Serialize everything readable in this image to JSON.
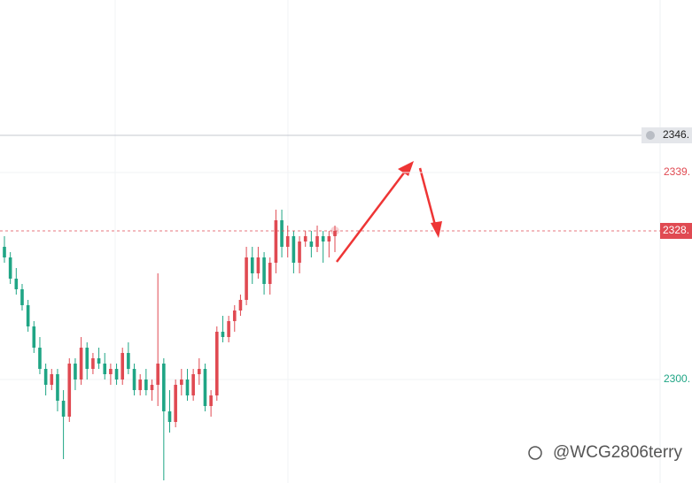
{
  "chart_data": {
    "type": "candlestick",
    "up_color": "#e04a52",
    "down_color": "#1fa585",
    "ylim": [
      2280.5,
      2371.5
    ],
    "yticks": [
      {
        "value": 2339,
        "label": "2339.",
        "color": "#e04a52"
      },
      {
        "value": 2300,
        "label": "2300.",
        "color": "#1fa585"
      }
    ],
    "grid": true,
    "alert_line": {
      "value": 2346,
      "label": "2346."
    },
    "last_price": {
      "value": 2328,
      "label": "2328."
    },
    "watermark": "@WCG2806terry",
    "candles": [
      {
        "open": 2325,
        "high": 2327,
        "low": 2322,
        "close": 2323
      },
      {
        "open": 2323,
        "high": 2324,
        "low": 2318,
        "close": 2319
      },
      {
        "open": 2319,
        "high": 2321,
        "low": 2316,
        "close": 2317
      },
      {
        "open": 2317,
        "high": 2318,
        "low": 2313,
        "close": 2314
      },
      {
        "open": 2314,
        "high": 2315,
        "low": 2309,
        "close": 2310
      },
      {
        "open": 2310,
        "high": 2311,
        "low": 2305,
        "close": 2306
      },
      {
        "open": 2306,
        "high": 2308,
        "low": 2301,
        "close": 2302
      },
      {
        "open": 2302,
        "high": 2303,
        "low": 2297,
        "close": 2299
      },
      {
        "open": 2299,
        "high": 2302,
        "low": 2298,
        "close": 2301
      },
      {
        "open": 2301,
        "high": 2302,
        "low": 2294,
        "close": 2296
      },
      {
        "open": 2296,
        "high": 2298,
        "low": 2285,
        "close": 2293
      },
      {
        "open": 2293,
        "high": 2304,
        "low": 2292,
        "close": 2303
      },
      {
        "open": 2303,
        "high": 2304,
        "low": 2298,
        "close": 2300
      },
      {
        "open": 2300,
        "high": 2308,
        "low": 2299,
        "close": 2306
      },
      {
        "open": 2306,
        "high": 2307,
        "low": 2300,
        "close": 2302
      },
      {
        "open": 2302,
        "high": 2305,
        "low": 2301,
        "close": 2304
      },
      {
        "open": 2304,
        "high": 2306,
        "low": 2302,
        "close": 2303
      },
      {
        "open": 2303,
        "high": 2305,
        "low": 2300,
        "close": 2301
      },
      {
        "open": 2301,
        "high": 2303,
        "low": 2299,
        "close": 2302
      },
      {
        "open": 2302,
        "high": 2303,
        "low": 2299,
        "close": 2300
      },
      {
        "open": 2300,
        "high": 2306,
        "low": 2299,
        "close": 2305
      },
      {
        "open": 2305,
        "high": 2307,
        "low": 2301,
        "close": 2302
      },
      {
        "open": 2302,
        "high": 2303,
        "low": 2297,
        "close": 2298
      },
      {
        "open": 2298,
        "high": 2301,
        "low": 2297,
        "close": 2300
      },
      {
        "open": 2300,
        "high": 2302,
        "low": 2297,
        "close": 2298
      },
      {
        "open": 2298,
        "high": 2300,
        "low": 2296,
        "close": 2299
      },
      {
        "open": 2299,
        "high": 2320,
        "low": 2295,
        "close": 2303
      },
      {
        "open": 2303,
        "high": 2304,
        "low": 2281,
        "close": 2294
      },
      {
        "open": 2294,
        "high": 2298,
        "low": 2290,
        "close": 2292
      },
      {
        "open": 2292,
        "high": 2300,
        "low": 2291,
        "close": 2299
      },
      {
        "open": 2299,
        "high": 2302,
        "low": 2297,
        "close": 2300
      },
      {
        "open": 2300,
        "high": 2302,
        "low": 2296,
        "close": 2297
      },
      {
        "open": 2297,
        "high": 2302,
        "low": 2296,
        "close": 2301
      },
      {
        "open": 2301,
        "high": 2304,
        "low": 2299,
        "close": 2302
      },
      {
        "open": 2302,
        "high": 2303,
        "low": 2294,
        "close": 2295
      },
      {
        "open": 2295,
        "high": 2298,
        "low": 2293,
        "close": 2297
      },
      {
        "open": 2297,
        "high": 2310,
        "low": 2296,
        "close": 2309
      },
      {
        "open": 2309,
        "high": 2312,
        "low": 2307,
        "close": 2308
      },
      {
        "open": 2308,
        "high": 2312,
        "low": 2307,
        "close": 2311
      },
      {
        "open": 2311,
        "high": 2314,
        "low": 2309,
        "close": 2313
      },
      {
        "open": 2313,
        "high": 2316,
        "low": 2312,
        "close": 2315
      },
      {
        "open": 2315,
        "high": 2325,
        "low": 2314,
        "close": 2323
      },
      {
        "open": 2323,
        "high": 2325,
        "low": 2318,
        "close": 2320
      },
      {
        "open": 2320,
        "high": 2325,
        "low": 2319,
        "close": 2323
      },
      {
        "open": 2323,
        "high": 2324,
        "low": 2316,
        "close": 2318
      },
      {
        "open": 2318,
        "high": 2323,
        "low": 2316,
        "close": 2322
      },
      {
        "open": 2322,
        "high": 2332,
        "low": 2320,
        "close": 2330
      },
      {
        "open": 2330,
        "high": 2332,
        "low": 2323,
        "close": 2325
      },
      {
        "open": 2325,
        "high": 2329,
        "low": 2323,
        "close": 2327
      },
      {
        "open": 2327,
        "high": 2328,
        "low": 2320,
        "close": 2322
      },
      {
        "open": 2322,
        "high": 2327,
        "low": 2320,
        "close": 2326
      },
      {
        "open": 2326,
        "high": 2328,
        "low": 2325,
        "close": 2327
      },
      {
        "open": 2326,
        "high": 2328,
        "low": 2323,
        "close": 2325
      },
      {
        "open": 2325,
        "high": 2329,
        "low": 2324,
        "close": 2327
      },
      {
        "open": 2327,
        "high": 2328,
        "low": 2322,
        "close": 2326
      },
      {
        "open": 2326,
        "high": 2328,
        "low": 2323,
        "close": 2327
      },
      {
        "open": 2327,
        "high": 2329,
        "low": 2324,
        "close": 2328
      }
    ]
  }
}
